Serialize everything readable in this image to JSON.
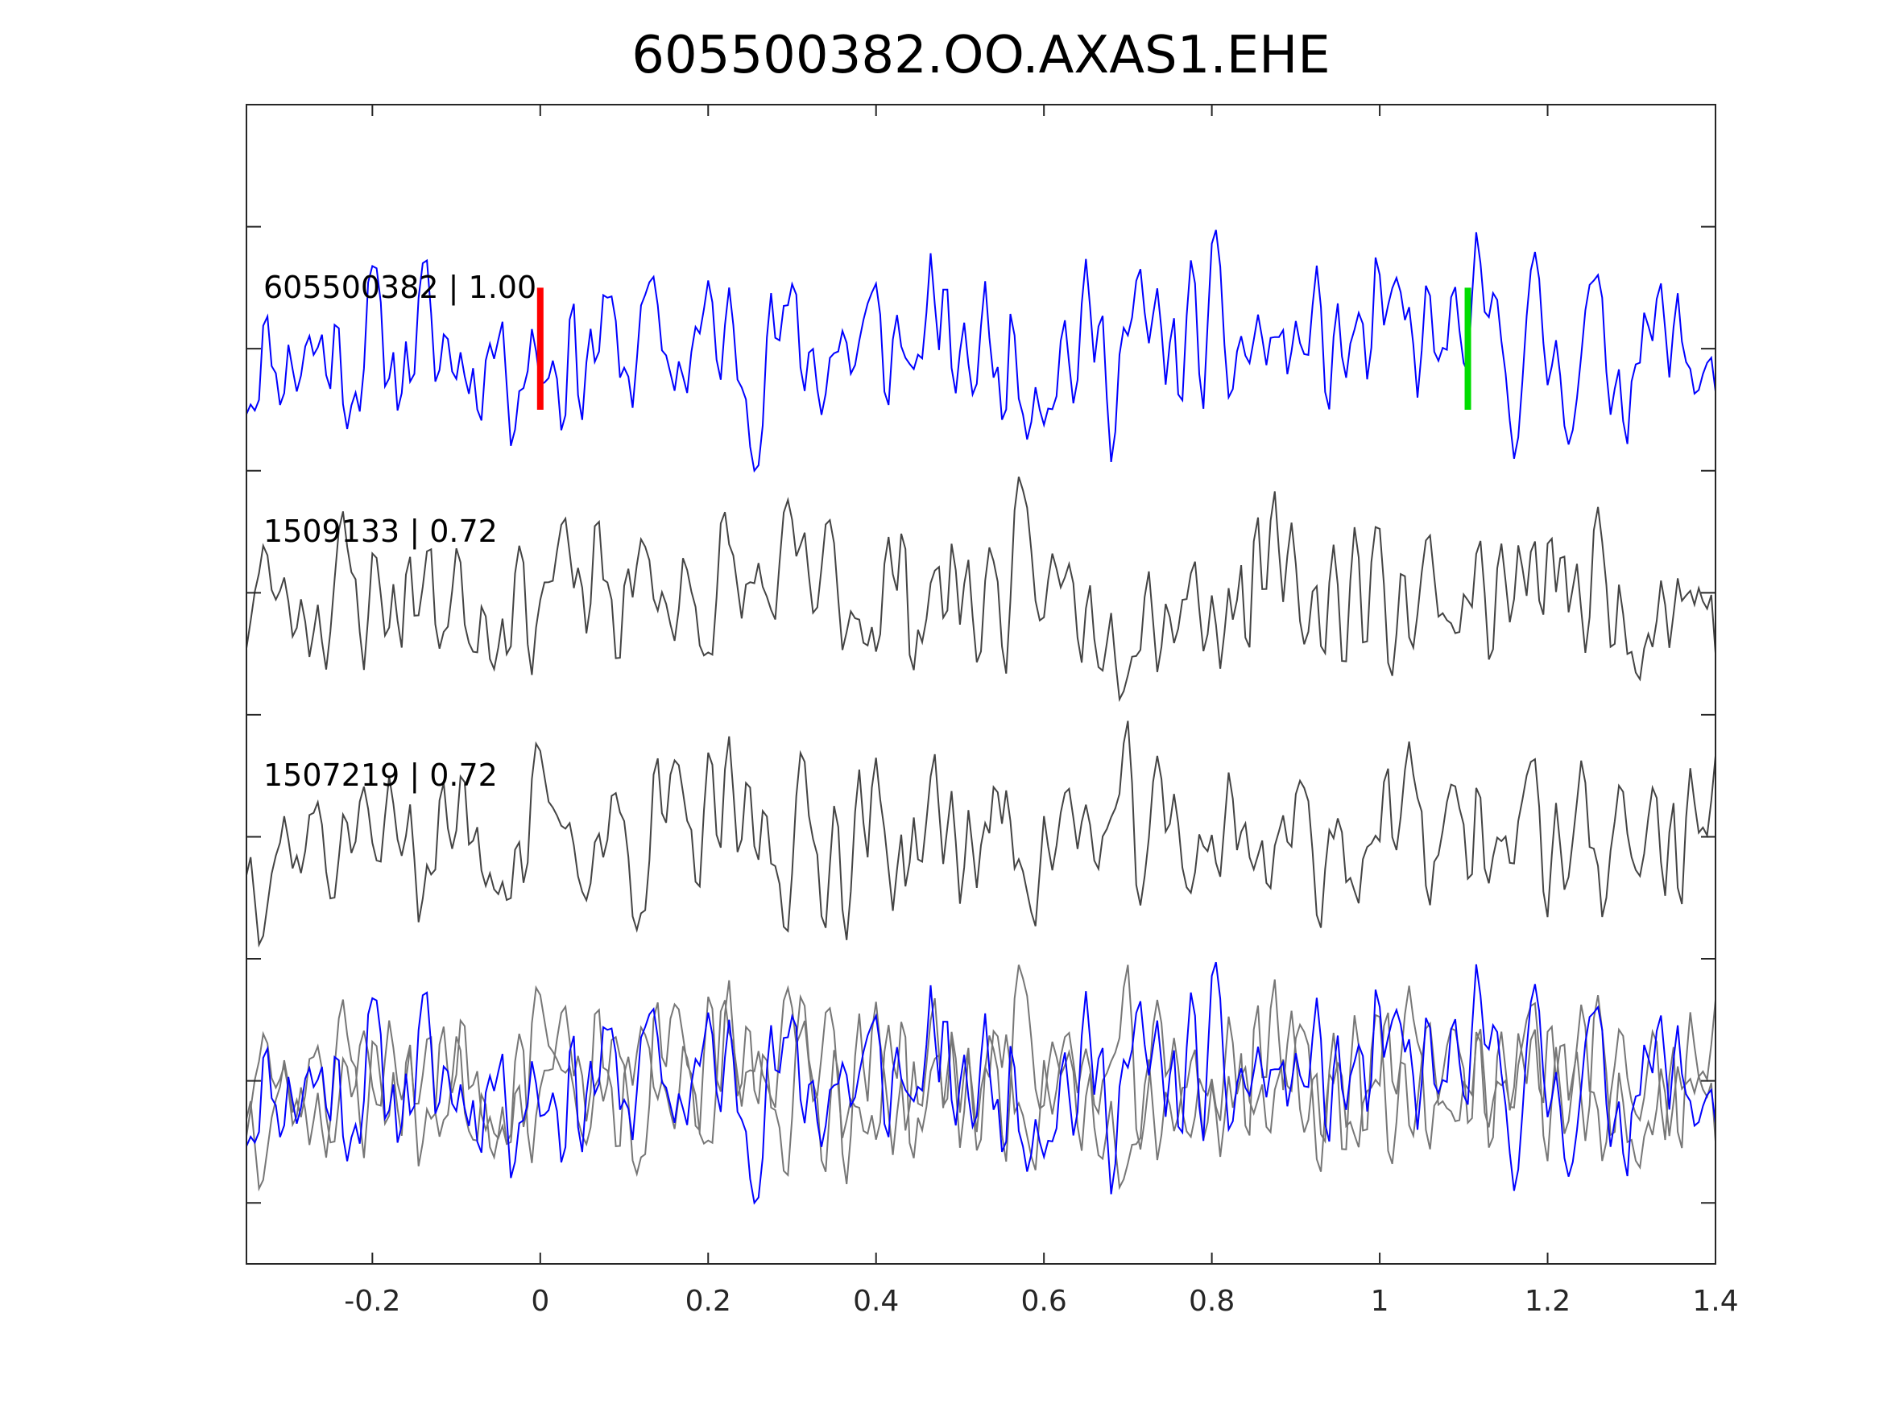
{
  "chart_data": {
    "type": "line",
    "title": "605500382.OO.AXAS1.EHE",
    "xlabel": "",
    "ylabel": "",
    "xlim": [
      -0.35,
      1.4
    ],
    "ylim": [
      -4.5,
      5
    ],
    "xticks": [
      -0.2,
      0,
      0.2,
      0.4,
      0.6,
      0.8,
      1,
      1.2,
      1.4
    ],
    "xtick_labels": [
      "-0.2",
      "0",
      "0.2",
      "0.4",
      "0.6",
      "0.8",
      "1",
      "1.2",
      "1.4"
    ],
    "yticks": [
      -4,
      -3,
      -2,
      -1,
      0,
      1,
      2,
      3,
      4
    ],
    "grid": false,
    "sample_interval": 0.005,
    "series": [
      {
        "name": "605500382",
        "label": "605500382 | 1.00",
        "correlation": 1.0,
        "offset": 3,
        "color": "#0000ff",
        "amplitude": 1.0,
        "seed": 11
      },
      {
        "name": "1509133",
        "label": "1509133 | 0.72",
        "correlation": 0.72,
        "offset": 1,
        "color": "#444444",
        "amplitude": 0.95,
        "seed": 23
      },
      {
        "name": "1507219",
        "label": "1507219 | 0.72",
        "correlation": 0.72,
        "offset": -1,
        "color": "#444444",
        "amplitude": 0.95,
        "seed": 37
      }
    ],
    "stack": {
      "offset": -3,
      "colors": [
        "#0000ff",
        "#777777",
        "#777777"
      ]
    },
    "picks": [
      {
        "name": "P",
        "time": 0.0,
        "color": "#ff0000",
        "y_range": [
          2.5,
          3.5
        ]
      },
      {
        "name": "S",
        "time": 1.105,
        "color": "#00dd00",
        "y_range": [
          2.5,
          3.5
        ]
      }
    ]
  }
}
